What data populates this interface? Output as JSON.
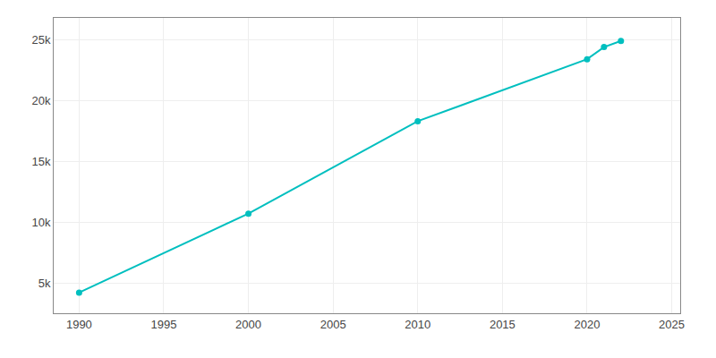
{
  "chart_data": {
    "type": "line",
    "x": [
      1990,
      2000,
      2010,
      2020,
      2021,
      2022
    ],
    "values": [
      4200,
      10700,
      18300,
      23400,
      24400,
      24900
    ],
    "color": "#00BFBF",
    "marker": "circle",
    "xlim": [
      1988.5,
      2025.5
    ],
    "ylim": [
      2500,
      26800
    ],
    "xticks": [
      1990,
      1995,
      2000,
      2005,
      2010,
      2015,
      2020,
      2025
    ],
    "yticks": [
      {
        "value": 5000,
        "label": "5k"
      },
      {
        "value": 10000,
        "label": "10k"
      },
      {
        "value": 15000,
        "label": "15k"
      },
      {
        "value": 20000,
        "label": "20k"
      },
      {
        "value": 25000,
        "label": "25k"
      }
    ],
    "grid": true
  }
}
